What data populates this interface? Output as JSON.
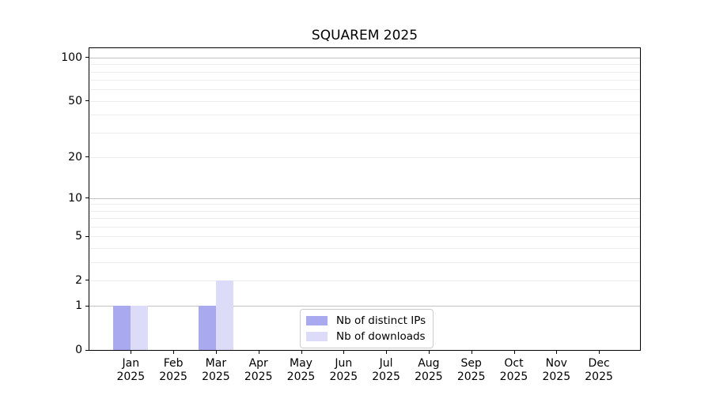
{
  "title": "SQUAREM 2025",
  "chart_data": {
    "type": "bar",
    "title": "SQUAREM 2025",
    "categories": [
      {
        "month": "Jan",
        "year": "2025"
      },
      {
        "month": "Feb",
        "year": "2025"
      },
      {
        "month": "Mar",
        "year": "2025"
      },
      {
        "month": "Apr",
        "year": "2025"
      },
      {
        "month": "May",
        "year": "2025"
      },
      {
        "month": "Jun",
        "year": "2025"
      },
      {
        "month": "Jul",
        "year": "2025"
      },
      {
        "month": "Aug",
        "year": "2025"
      },
      {
        "month": "Sep",
        "year": "2025"
      },
      {
        "month": "Oct",
        "year": "2025"
      },
      {
        "month": "Nov",
        "year": "2025"
      },
      {
        "month": "Dec",
        "year": "2025"
      }
    ],
    "series": [
      {
        "name": "Nb of distinct IPs",
        "color": "#a9a9ef",
        "values": [
          1,
          0,
          1,
          0,
          0,
          0,
          0,
          0,
          0,
          0,
          0,
          0
        ]
      },
      {
        "name": "Nb of downloads",
        "color": "#dcdcf8",
        "values": [
          1,
          0,
          2,
          0,
          0,
          0,
          0,
          0,
          0,
          0,
          0,
          0
        ]
      }
    ],
    "yscale": "log1p",
    "ylim": [
      0,
      115
    ],
    "yticks": [
      0,
      1,
      2,
      5,
      10,
      20,
      50,
      100
    ],
    "yticks_minor": [
      3,
      4,
      6,
      7,
      8,
      9,
      30,
      40,
      60,
      70,
      80,
      90
    ],
    "grid": true,
    "grid_emphasis_values": [
      1,
      10,
      100
    ],
    "legend_position": "lower center",
    "xlabel": "",
    "ylabel": ""
  },
  "colors": {
    "grid_major": "#c2c2c2",
    "grid_minor": "#ececec",
    "axis": "#000000",
    "legend_border": "#cccccc",
    "text": "#000000"
  }
}
